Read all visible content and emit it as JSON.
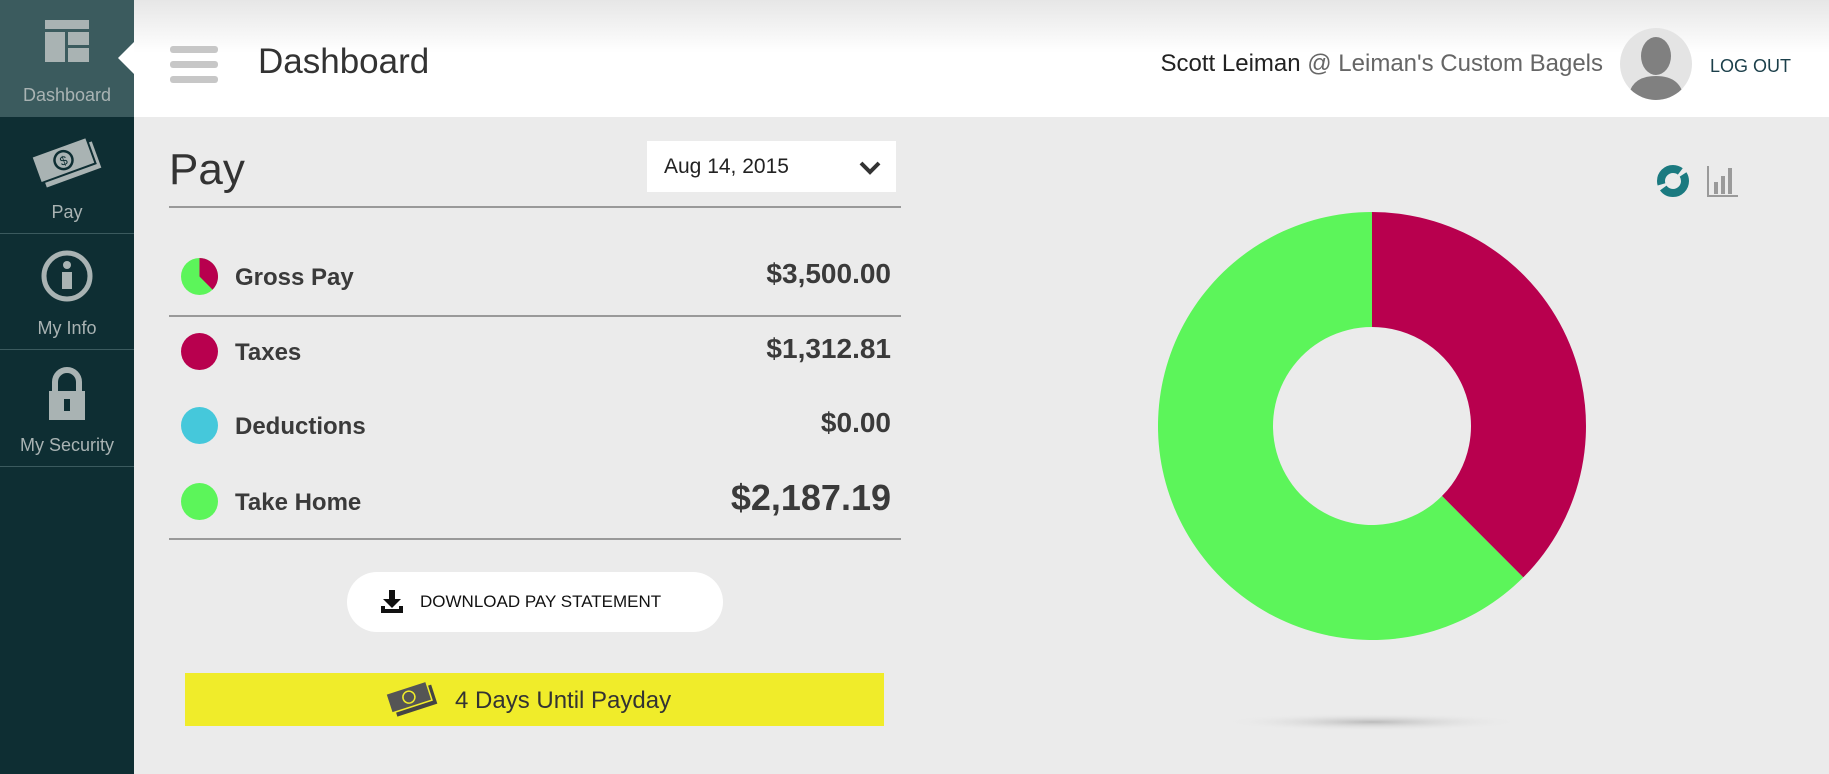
{
  "sidebar": {
    "items": [
      {
        "label": "Dashboard",
        "icon": "dashboard-icon",
        "active": true
      },
      {
        "label": "Pay",
        "icon": "money-icon"
      },
      {
        "label": "My Info",
        "icon": "info-icon"
      },
      {
        "label": "My Security",
        "icon": "lock-icon"
      }
    ]
  },
  "header": {
    "title": "Dashboard",
    "user_name": "Scott Leiman",
    "company": "@ Leiman's Custom Bagels",
    "logout": "LOG OUT"
  },
  "pay": {
    "heading": "Pay",
    "date": "Aug 14, 2015",
    "rows": [
      {
        "label": "Gross Pay",
        "amount": "$3,500.00"
      },
      {
        "label": "Taxes",
        "amount": "$1,312.81",
        "color": "#b8004e"
      },
      {
        "label": "Deductions",
        "amount": "$0.00",
        "color": "#45c8db"
      },
      {
        "label": "Take Home",
        "amount": "$2,187.19",
        "color": "#5cf55a"
      }
    ],
    "download": "DOWNLOAD PAY STATEMENT",
    "payday": "4 Days Until Payday"
  },
  "chart_data": {
    "type": "pie",
    "variant": "donut",
    "categories": [
      "Taxes",
      "Deductions",
      "Take Home"
    ],
    "values": [
      1312.81,
      0,
      2187.19
    ],
    "colors": [
      "#b8004e",
      "#45c8db",
      "#5cf55a"
    ]
  }
}
